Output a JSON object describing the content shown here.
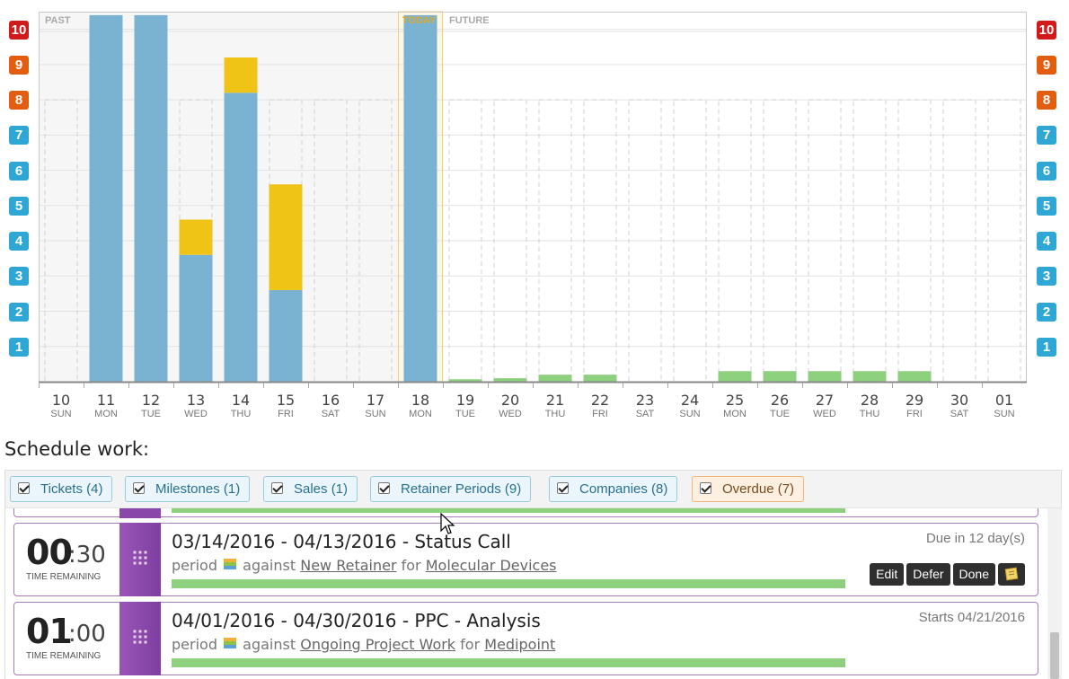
{
  "chart_data": {
    "type": "bar",
    "stacked": true,
    "segments": [
      "PAST",
      "TODAY",
      "FUTURE"
    ],
    "y_ticks": [
      1,
      2,
      3,
      4,
      5,
      6,
      7,
      8,
      9,
      10
    ],
    "ylim": [
      0,
      10.5
    ],
    "capacity_line": 8,
    "y_tick_colors": {
      "low": "#2fa7d4",
      "mid": "#e35d10",
      "high": "#d11b1b"
    },
    "days": [
      {
        "num": "10",
        "dow": "SUN"
      },
      {
        "num": "11",
        "dow": "MON"
      },
      {
        "num": "12",
        "dow": "TUE"
      },
      {
        "num": "13",
        "dow": "WED"
      },
      {
        "num": "14",
        "dow": "THU"
      },
      {
        "num": "15",
        "dow": "FRI"
      },
      {
        "num": "16",
        "dow": "SAT"
      },
      {
        "num": "17",
        "dow": "SUN"
      },
      {
        "num": "18",
        "dow": "MON"
      },
      {
        "num": "19",
        "dow": "TUE"
      },
      {
        "num": "20",
        "dow": "WED"
      },
      {
        "num": "21",
        "dow": "THU"
      },
      {
        "num": "22",
        "dow": "FRI"
      },
      {
        "num": "23",
        "dow": "SAT"
      },
      {
        "num": "24",
        "dow": "SUN"
      },
      {
        "num": "25",
        "dow": "MON"
      },
      {
        "num": "26",
        "dow": "TUE"
      },
      {
        "num": "27",
        "dow": "WED"
      },
      {
        "num": "28",
        "dow": "THU"
      },
      {
        "num": "29",
        "dow": "FRI"
      },
      {
        "num": "30",
        "dow": "SAT"
      },
      {
        "num": "01",
        "dow": "SUN"
      }
    ],
    "today_index": 8,
    "series": [
      {
        "color": "#79b3d1",
        "values": [
          0,
          10.4,
          10.4,
          3.6,
          8.2,
          2.6,
          0,
          0,
          10.4,
          0,
          0,
          0,
          0,
          0,
          0,
          0,
          0,
          0,
          0,
          0,
          0,
          0
        ]
      },
      {
        "color": "#efc416",
        "values": [
          0,
          0,
          0,
          1.0,
          1.0,
          3.0,
          0,
          0,
          0,
          0,
          0,
          0,
          0,
          0,
          0,
          0,
          0,
          0,
          0,
          0,
          0,
          0
        ]
      },
      {
        "color": "#8dd07e",
        "values": [
          0,
          0,
          0,
          0,
          0,
          0,
          0,
          0,
          0,
          0.07,
          0.1,
          0.2,
          0.2,
          0,
          0,
          0.3,
          0.3,
          0.3,
          0.3,
          0.3,
          0,
          0
        ]
      }
    ]
  },
  "schedule": {
    "title": "Schedule work:",
    "filters": [
      {
        "label": "Tickets (4)",
        "style": "normal"
      },
      {
        "label": "Milestones (1)",
        "style": "normal"
      },
      {
        "label": "Sales (1)",
        "style": "normal"
      },
      {
        "label": "Retainer Periods (9)",
        "style": "normal"
      },
      {
        "label": "Companies (8)",
        "style": "normal"
      },
      {
        "label": "Overdue (7)",
        "style": "overdue"
      }
    ],
    "cards": [
      {
        "hours": "00",
        "minutes": ":30",
        "caption": "TIME REMAINING",
        "title": "03/14/2016 - 04/13/2016 - Status Call",
        "type": "period",
        "against": "against",
        "project": "New Retainer",
        "for": "for",
        "company": "Molecular Devices",
        "due": "Due in 12 day(s)",
        "actions": [
          "Edit",
          "Defer",
          "Done"
        ],
        "progress": 1.0
      },
      {
        "hours": "01",
        "minutes": ":00",
        "caption": "TIME REMAINING",
        "title": "04/01/2016 - 04/30/2016 - PPC - Analysis",
        "type": "period",
        "against": "against",
        "project": "Ongoing Project Work",
        "for": "for",
        "company": "Medipoint",
        "due": "Starts 04/21/2016",
        "actions": [],
        "progress": 1.0
      }
    ]
  }
}
